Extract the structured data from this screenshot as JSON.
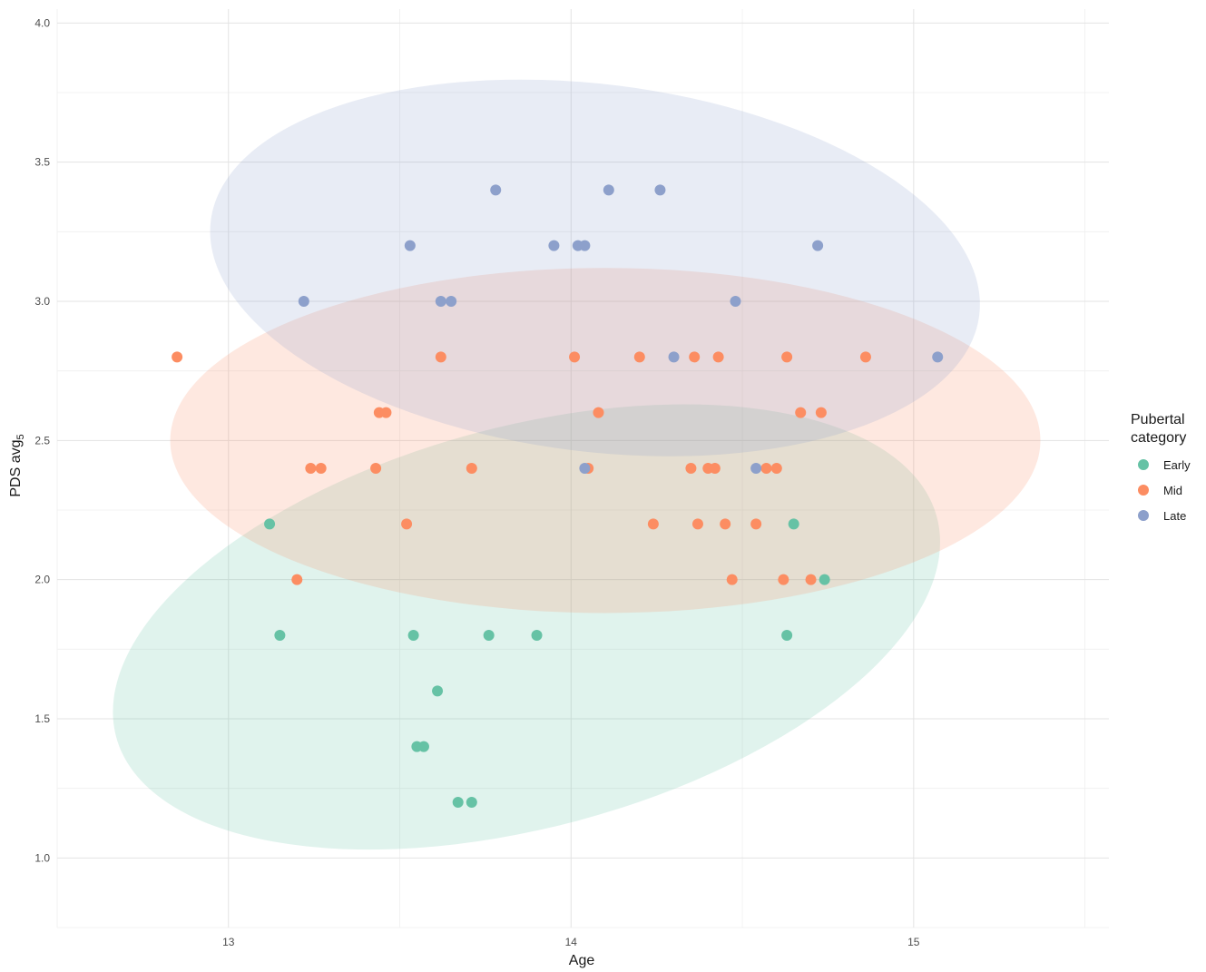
{
  "chart_data": {
    "type": "scatter",
    "xlabel": "Age",
    "ylabel_main": "PDS avg",
    "ylabel_subscript": "5",
    "xlim": [
      12.5,
      15.57
    ],
    "ylim": [
      0.75,
      4.05
    ],
    "x_ticks": [
      13,
      14,
      15
    ],
    "y_ticks": [
      1.0,
      1.5,
      2.0,
      2.5,
      3.0,
      3.5,
      4.0
    ],
    "x_tick_labels": [
      "13",
      "14",
      "15"
    ],
    "y_tick_labels": [
      "1.0",
      "1.5",
      "2.0",
      "2.5",
      "3.0",
      "3.5",
      "4.0"
    ],
    "grid": true,
    "legend": {
      "title_line1": "Pubertal",
      "title_line2": "category",
      "position": "right"
    },
    "series": [
      {
        "name": "Early",
        "color": "#66c2a5",
        "ellipse": {
          "cx": 13.87,
          "cy": 1.83,
          "rx": 1.24,
          "ry": 0.72,
          "rotation": 15
        },
        "points": [
          [
            13.12,
            2.2
          ],
          [
            13.15,
            1.8
          ],
          [
            13.54,
            1.8
          ],
          [
            13.55,
            1.4
          ],
          [
            13.57,
            1.4
          ],
          [
            13.61,
            1.6
          ],
          [
            13.67,
            1.2
          ],
          [
            13.71,
            1.2
          ],
          [
            13.76,
            1.8
          ],
          [
            13.9,
            1.8
          ],
          [
            14.63,
            1.8
          ],
          [
            14.65,
            2.2
          ],
          [
            14.74,
            2.0
          ]
        ]
      },
      {
        "name": "Mid",
        "color": "#fc8d62",
        "ellipse": {
          "cx": 14.1,
          "cy": 2.5,
          "rx": 1.27,
          "ry": 0.62,
          "rotation": 0
        },
        "points": [
          [
            12.85,
            2.8
          ],
          [
            13.2,
            2.0
          ],
          [
            13.24,
            2.4
          ],
          [
            13.27,
            2.4
          ],
          [
            13.43,
            2.4
          ],
          [
            13.44,
            2.6
          ],
          [
            13.46,
            2.6
          ],
          [
            13.52,
            2.2
          ],
          [
            13.62,
            2.8
          ],
          [
            13.71,
            2.4
          ],
          [
            14.01,
            2.8
          ],
          [
            14.08,
            2.6
          ],
          [
            14.05,
            2.4
          ],
          [
            14.2,
            2.8
          ],
          [
            14.24,
            2.2
          ],
          [
            14.35,
            2.4
          ],
          [
            14.36,
            2.8
          ],
          [
            14.37,
            2.2
          ],
          [
            14.4,
            2.4
          ],
          [
            14.42,
            2.4
          ],
          [
            14.43,
            2.8
          ],
          [
            14.45,
            2.2
          ],
          [
            14.47,
            2.0
          ],
          [
            14.54,
            2.2
          ],
          [
            14.57,
            2.4
          ],
          [
            14.6,
            2.4
          ],
          [
            14.62,
            2.0
          ],
          [
            14.63,
            2.8
          ],
          [
            14.67,
            2.6
          ],
          [
            14.7,
            2.0
          ],
          [
            14.73,
            2.6
          ],
          [
            14.86,
            2.8
          ]
        ]
      },
      {
        "name": "Late",
        "color": "#8da0cb",
        "ellipse": {
          "cx": 14.07,
          "cy": 3.12,
          "rx": 1.13,
          "ry": 0.66,
          "rotation": -7
        },
        "points": [
          [
            13.22,
            3.0
          ],
          [
            13.53,
            3.2
          ],
          [
            13.62,
            3.0
          ],
          [
            13.65,
            3.0
          ],
          [
            13.78,
            3.4
          ],
          [
            13.95,
            3.2
          ],
          [
            14.02,
            3.2
          ],
          [
            14.04,
            3.2
          ],
          [
            14.04,
            2.4
          ],
          [
            14.11,
            3.4
          ],
          [
            14.26,
            3.4
          ],
          [
            14.3,
            2.8
          ],
          [
            14.48,
            3.0
          ],
          [
            14.54,
            2.4
          ],
          [
            14.72,
            3.2
          ],
          [
            15.07,
            2.8
          ]
        ]
      }
    ]
  }
}
